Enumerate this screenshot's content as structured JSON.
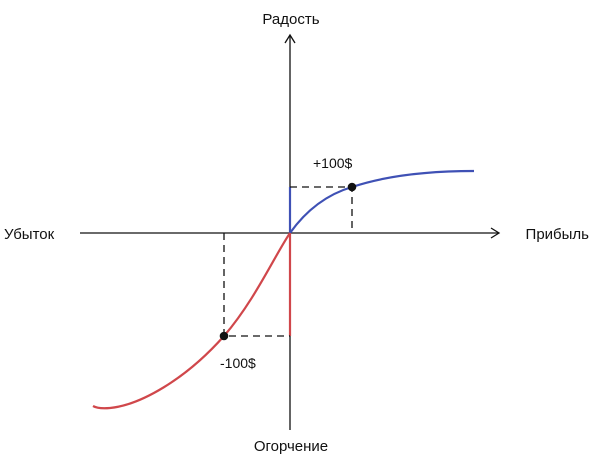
{
  "axes": {
    "top_label": "Радость",
    "bottom_label": "Огорчение",
    "left_label": "Убыток",
    "right_label": "Прибыль"
  },
  "points": {
    "gain_label": "+100$",
    "loss_label": "-100$"
  },
  "colors": {
    "gain_curve": "#3f51b5",
    "loss_curve": "#d0474b",
    "axis": "#111111"
  }
}
